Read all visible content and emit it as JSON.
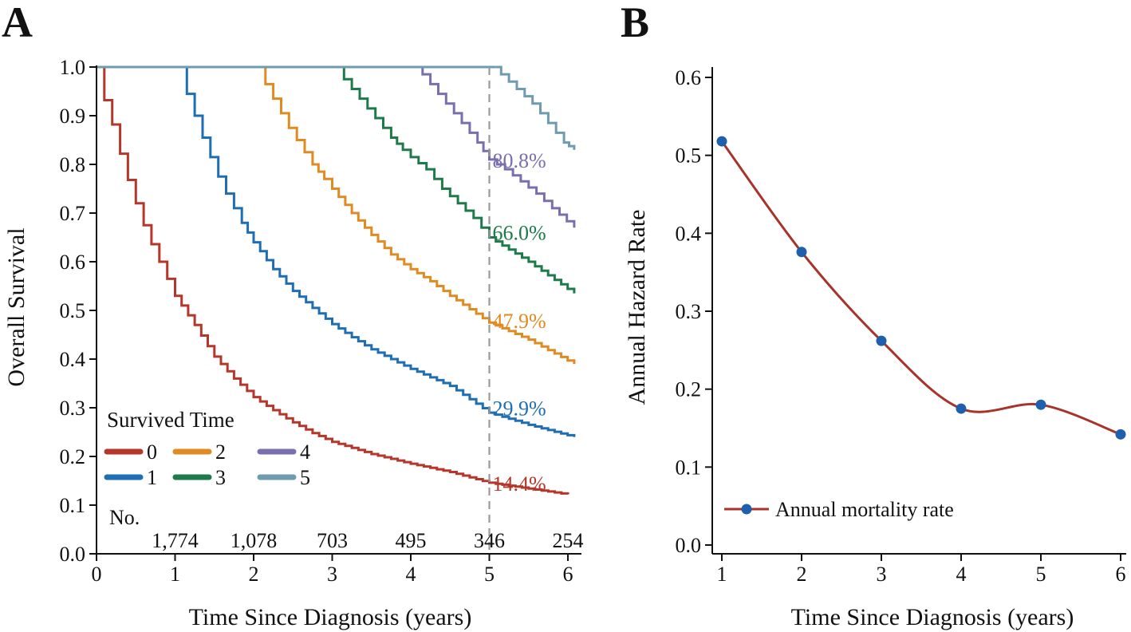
{
  "panels": {
    "a": {
      "letter": "A"
    },
    "b": {
      "letter": "B"
    }
  },
  "chart_data": [
    {
      "type": "line",
      "subtype": "kaplan-meier step",
      "panel": "A",
      "xlabel": "Time Since Diagnosis (years)",
      "ylabel": "Overall Survival",
      "xlim": [
        0,
        6.1
      ],
      "ylim": [
        0,
        1.0
      ],
      "xticks": [
        "0",
        "1",
        "2",
        "3",
        "4",
        "5",
        "6"
      ],
      "yticks": [
        "0.0",
        "0.1",
        "0.2",
        "0.3",
        "0.4",
        "0.5",
        "0.6",
        "0.7",
        "0.8",
        "0.9",
        "1.0"
      ],
      "legend": {
        "title": "Survived Time",
        "placement": "bottom-left",
        "entries": [
          "0",
          "1",
          "2",
          "3",
          "4",
          "5"
        ]
      },
      "reference_line": {
        "x": 5,
        "style": "dashed",
        "color": "#9a9a9a"
      },
      "series": [
        {
          "name": "0",
          "color": "#b5362a",
          "start": 0,
          "end_value": 0.122,
          "label": "14.4%",
          "label_value": 0.144,
          "x": [
            0,
            0.1,
            0.2,
            0.3,
            0.4,
            0.5,
            0.6,
            0.7,
            0.8,
            0.9,
            1.0,
            1.25,
            1.5,
            1.75,
            2.0,
            2.25,
            2.5,
            2.75,
            3.0,
            3.5,
            4.0,
            4.5,
            5.0,
            5.5,
            6.0,
            6.0
          ],
          "y": [
            1.0,
            0.932,
            0.882,
            0.822,
            0.768,
            0.72,
            0.675,
            0.636,
            0.6,
            0.565,
            0.53,
            0.47,
            0.405,
            0.36,
            0.322,
            0.295,
            0.27,
            0.248,
            0.23,
            0.205,
            0.185,
            0.168,
            0.146,
            0.134,
            0.122,
            0.122
          ]
        },
        {
          "name": "1",
          "color": "#1f6db2",
          "start": 1.08,
          "end_value": 0.24,
          "label": "29.9%",
          "label_value": 0.299,
          "x": [
            1.08,
            1.15,
            1.25,
            1.35,
            1.45,
            1.55,
            1.65,
            1.75,
            1.85,
            2.0,
            2.25,
            2.5,
            2.75,
            3.0,
            3.25,
            3.5,
            4.0,
            4.5,
            5.0,
            5.5,
            6.08
          ],
          "y": [
            1.0,
            0.945,
            0.9,
            0.855,
            0.815,
            0.775,
            0.74,
            0.71,
            0.68,
            0.64,
            0.585,
            0.54,
            0.505,
            0.472,
            0.445,
            0.42,
            0.38,
            0.345,
            0.29,
            0.265,
            0.24
          ]
        },
        {
          "name": "2",
          "color": "#e08a22",
          "start": 2.07,
          "end_value": 0.39,
          "label": "47.9%",
          "label_value": 0.479,
          "x": [
            2.07,
            2.15,
            2.25,
            2.35,
            2.45,
            2.55,
            2.65,
            2.75,
            2.9,
            3.0,
            3.25,
            3.5,
            3.75,
            4.0,
            4.25,
            4.5,
            5.0,
            5.5,
            6.08
          ],
          "y": [
            1.0,
            0.965,
            0.935,
            0.905,
            0.875,
            0.85,
            0.825,
            0.8,
            0.77,
            0.75,
            0.7,
            0.655,
            0.615,
            0.585,
            0.56,
            0.53,
            0.475,
            0.44,
            0.39
          ]
        },
        {
          "name": "3",
          "color": "#1e7a4a",
          "start": 3.07,
          "end_value": 0.535,
          "label": "66.0%",
          "label_value": 0.66,
          "x": [
            3.07,
            3.15,
            3.25,
            3.35,
            3.45,
            3.55,
            3.65,
            3.75,
            3.9,
            4.0,
            4.2,
            4.4,
            4.6,
            4.8,
            5.0,
            5.5,
            6.08
          ],
          "y": [
            1.0,
            0.975,
            0.955,
            0.935,
            0.915,
            0.895,
            0.875,
            0.855,
            0.83,
            0.815,
            0.79,
            0.75,
            0.72,
            0.69,
            0.65,
            0.6,
            0.535
          ]
        },
        {
          "name": "4",
          "color": "#7a6fae",
          "start": 4.08,
          "end_value": 0.67,
          "label": "80.8%",
          "label_value": 0.808,
          "x": [
            4.08,
            4.15,
            4.25,
            4.35,
            4.45,
            4.55,
            4.65,
            4.75,
            4.85,
            5.0,
            5.2,
            5.4,
            5.6,
            5.8,
            6.08
          ],
          "y": [
            1.0,
            0.985,
            0.965,
            0.945,
            0.925,
            0.905,
            0.885,
            0.865,
            0.845,
            0.81,
            0.79,
            0.765,
            0.74,
            0.71,
            0.67
          ]
        },
        {
          "name": "5",
          "color": "#6f9bb0",
          "start": 5.08,
          "end_value": 0.83,
          "label": "",
          "label_value": null,
          "x": [
            5.08,
            5.15,
            5.25,
            5.35,
            5.45,
            5.55,
            5.65,
            5.75,
            5.85,
            5.95,
            6.08
          ],
          "y": [
            1.0,
            0.985,
            0.97,
            0.955,
            0.94,
            0.925,
            0.905,
            0.885,
            0.865,
            0.845,
            0.83
          ]
        }
      ],
      "risk_table": {
        "header": "No.",
        "x": [
          1,
          2,
          3,
          4,
          5,
          6
        ],
        "values": [
          "1,774",
          "1,078",
          "703",
          "495",
          "346",
          "254"
        ]
      }
    },
    {
      "type": "line",
      "panel": "B",
      "xlabel": "Time Since Diagnosis (years)",
      "ylabel": "Annual Hazard Rate",
      "xlim": [
        1,
        6
      ],
      "ylim": [
        0,
        0.6
      ],
      "xticks": [
        "1",
        "2",
        "3",
        "4",
        "5",
        "6"
      ],
      "yticks": [
        "0.0",
        "0.1",
        "0.2",
        "0.3",
        "0.4",
        "0.5",
        "0.6"
      ],
      "legend": {
        "placement": "bottom-left",
        "entries": [
          "Annual mortality rate"
        ]
      },
      "series": [
        {
          "name": "Annual mortality rate",
          "color": "#a8332b",
          "marker_color": "#1f5fad",
          "x": [
            1,
            2,
            3,
            4,
            5,
            6
          ],
          "y": [
            0.518,
            0.376,
            0.262,
            0.175,
            0.18,
            0.142
          ]
        }
      ]
    }
  ]
}
